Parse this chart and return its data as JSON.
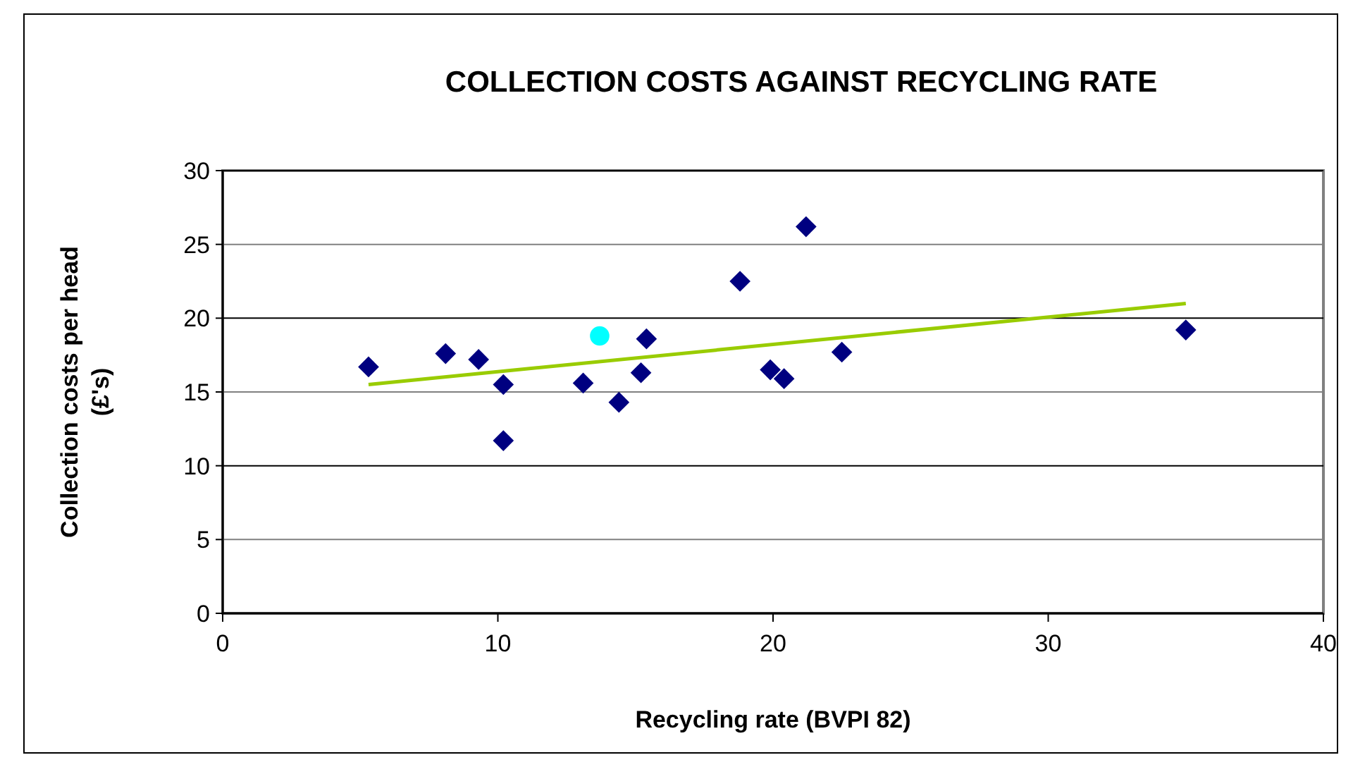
{
  "chart_data": {
    "type": "scatter",
    "title": "COLLECTION COSTS AGAINST RECYCLING RATE",
    "xlabel": "Recycling rate (BVPI 82)",
    "ylabel": "Collection costs per head (£'s)",
    "xlim": [
      0,
      40
    ],
    "xticks": [
      0,
      10,
      20,
      30,
      40
    ],
    "ylim": [
      0,
      30
    ],
    "yticks": [
      0,
      5,
      10,
      15,
      20,
      25,
      30
    ],
    "grid": "y",
    "series": [
      {
        "color": "#000080",
        "marker": "diamond",
        "x": [
          5.3,
          8.1,
          9.3,
          10.2,
          10.2,
          13.1,
          14.4,
          15.2,
          15.4,
          18.8,
          19.9,
          20.4,
          21.2,
          22.5,
          35.0
        ],
        "values": [
          16.7,
          17.6,
          17.2,
          15.5,
          11.7,
          15.6,
          14.3,
          16.3,
          18.6,
          22.5,
          16.5,
          15.9,
          26.2,
          17.7,
          19.2
        ]
      },
      {
        "color": "#00ffff",
        "marker": "circle",
        "x": [
          13.7
        ],
        "values": [
          18.8
        ]
      },
      {
        "type": "line",
        "color": "#99cc00",
        "marker": "none",
        "x": [
          5.3,
          35.0
        ],
        "values": [
          15.5,
          21.0
        ]
      }
    ]
  }
}
